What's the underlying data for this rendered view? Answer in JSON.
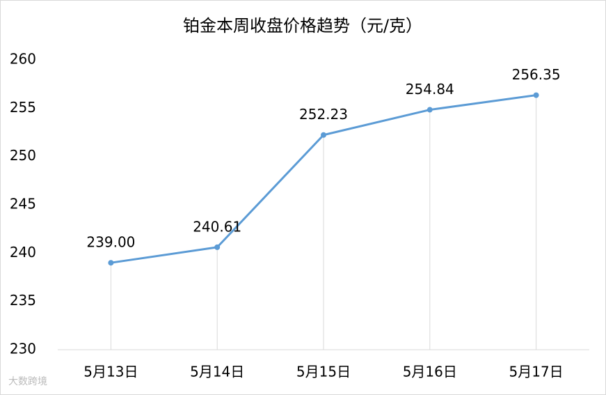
{
  "chart_data": {
    "type": "line",
    "title": "铂金本周收盘价格趋势（元/克）",
    "categories": [
      "5月13日",
      "5月14日",
      "5月15日",
      "5月16日",
      "5月17日"
    ],
    "values": [
      239.0,
      240.61,
      252.23,
      254.84,
      256.35
    ],
    "value_labels": [
      "239.00",
      "240.61",
      "252.23",
      "254.84",
      "256.35"
    ],
    "color": "#5b9bd5",
    "ylim": [
      230,
      260
    ],
    "yticks": [
      230,
      235,
      240,
      245,
      250,
      255,
      260
    ],
    "grid": false,
    "drop_lines": true
  },
  "watermark": "大数跨境"
}
